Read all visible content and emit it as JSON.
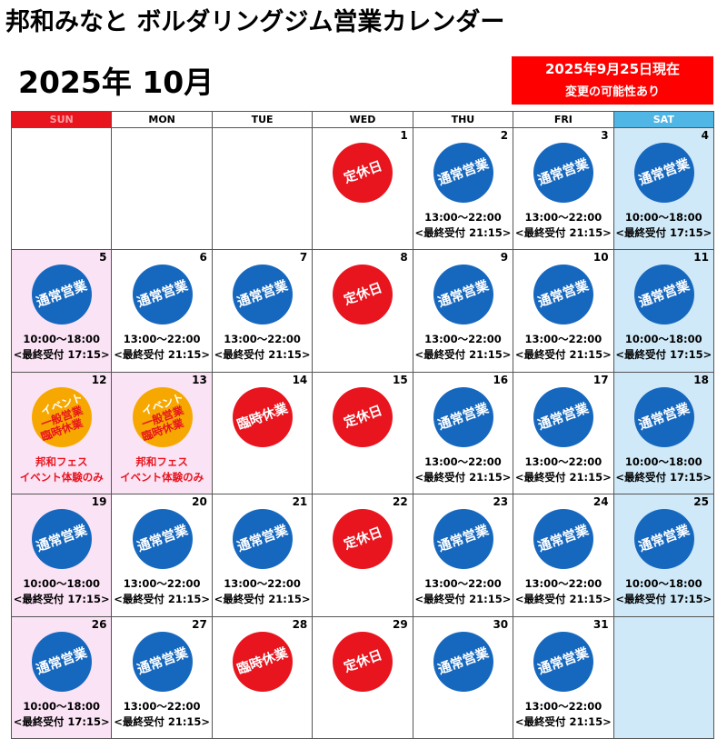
{
  "header": {
    "title": "邦和みなと ボルダリングジム営業カレンダー",
    "month": "2025年 10月",
    "notice": [
      "2025年9月25日現在",
      "変更の可能性あり"
    ]
  },
  "calendar": {
    "headers": [
      {
        "text": "SUN",
        "bg": "#e8141e",
        "color": "#ff9fa4"
      },
      {
        "text": "MON",
        "bg": "#ffffff",
        "color": "#000000"
      },
      {
        "text": "TUE",
        "bg": "#ffffff",
        "color": "#000000"
      },
      {
        "text": "WED",
        "bg": "#ffffff",
        "color": "#000000"
      },
      {
        "text": "THU",
        "bg": "#ffffff",
        "color": "#000000"
      },
      {
        "text": "FRI",
        "bg": "#ffffff",
        "color": "#000000"
      },
      {
        "text": "SAT",
        "bg": "#4fb6e6",
        "color": "#ffffff"
      }
    ],
    "weeks": [
      [
        {
          "bg": "#ffffff"
        },
        {
          "bg": "#ffffff"
        },
        {
          "bg": "#ffffff"
        },
        {
          "bg": "#ffffff",
          "day": 1,
          "badge": [
            "定休日"
          ],
          "badge_color": "#e8141e",
          "badge_text_colors": [
            "#ffffff"
          ]
        },
        {
          "bg": "#ffffff",
          "day": 2,
          "badge": [
            "通常営業"
          ],
          "badge_color": "#1668bf",
          "badge_text_colors": [
            "#ffffff"
          ],
          "notes": [
            "13:00～22:00",
            "<最終受付 21:15>"
          ],
          "note_color": "#000000"
        },
        {
          "bg": "#ffffff",
          "day": 3,
          "badge": [
            "通常営業"
          ],
          "badge_color": "#1668bf",
          "badge_text_colors": [
            "#ffffff"
          ],
          "notes": [
            "13:00～22:00",
            "<最終受付 21:15>"
          ],
          "note_color": "#000000"
        },
        {
          "bg": "#cfe9f8",
          "day": 4,
          "badge": [
            "通常営業"
          ],
          "badge_color": "#1668bf",
          "badge_text_colors": [
            "#ffffff"
          ],
          "notes": [
            "10:00～18:00",
            "<最終受付 17:15>"
          ],
          "note_color": "#000000"
        }
      ],
      [
        {
          "bg": "#fbe3f6",
          "day": 5,
          "badge": [
            "通常営業"
          ],
          "badge_color": "#1668bf",
          "badge_text_colors": [
            "#ffffff"
          ],
          "notes": [
            "10:00～18:00",
            "<最終受付 17:15>"
          ],
          "note_color": "#000000"
        },
        {
          "bg": "#ffffff",
          "day": 6,
          "badge": [
            "通常営業"
          ],
          "badge_color": "#1668bf",
          "badge_text_colors": [
            "#ffffff"
          ],
          "notes": [
            "13:00～22:00",
            "<最終受付 21:15>"
          ],
          "note_color": "#000000"
        },
        {
          "bg": "#ffffff",
          "day": 7,
          "badge": [
            "通常営業"
          ],
          "badge_color": "#1668bf",
          "badge_text_colors": [
            "#ffffff"
          ],
          "notes": [
            "13:00～22:00",
            "<最終受付 21:15>"
          ],
          "note_color": "#000000"
        },
        {
          "bg": "#ffffff",
          "day": 8,
          "badge": [
            "定休日"
          ],
          "badge_color": "#e8141e",
          "badge_text_colors": [
            "#ffffff"
          ]
        },
        {
          "bg": "#ffffff",
          "day": 9,
          "badge": [
            "通常営業"
          ],
          "badge_color": "#1668bf",
          "badge_text_colors": [
            "#ffffff"
          ],
          "notes": [
            "13:00～22:00",
            "<最終受付 21:15>"
          ],
          "note_color": "#000000"
        },
        {
          "bg": "#ffffff",
          "day": 10,
          "badge": [
            "通常営業"
          ],
          "badge_color": "#1668bf",
          "badge_text_colors": [
            "#ffffff"
          ],
          "notes": [
            "13:00～22:00",
            "<最終受付 21:15>"
          ],
          "note_color": "#000000"
        },
        {
          "bg": "#cfe9f8",
          "day": 11,
          "badge": [
            "通常営業"
          ],
          "badge_color": "#1668bf",
          "badge_text_colors": [
            "#ffffff"
          ],
          "notes": [
            "10:00～18:00",
            "<最終受付 17:15>"
          ],
          "note_color": "#000000"
        }
      ],
      [
        {
          "bg": "#fbe3f6",
          "day": 12,
          "badge": [
            "イベント",
            "一般営業",
            "臨時休業"
          ],
          "badge_color": "#f7a800",
          "badge_text_colors": [
            "#ffffff",
            "#e8141e",
            "#e8141e"
          ],
          "notes": [
            "邦和フェス",
            "イベント体験のみ"
          ],
          "note_color": "#e8141e"
        },
        {
          "bg": "#fbe3f6",
          "day": 13,
          "badge": [
            "イベント",
            "一般営業",
            "臨時休業"
          ],
          "badge_color": "#f7a800",
          "badge_text_colors": [
            "#ffffff",
            "#e8141e",
            "#e8141e"
          ],
          "notes": [
            "邦和フェス",
            "イベント体験のみ"
          ],
          "note_color": "#e8141e"
        },
        {
          "bg": "#ffffff",
          "day": 14,
          "badge": [
            "臨時休業"
          ],
          "badge_color": "#e8141e",
          "badge_text_colors": [
            "#ffffff"
          ]
        },
        {
          "bg": "#ffffff",
          "day": 15,
          "badge": [
            "定休日"
          ],
          "badge_color": "#e8141e",
          "badge_text_colors": [
            "#ffffff"
          ]
        },
        {
          "bg": "#ffffff",
          "day": 16,
          "badge": [
            "通常営業"
          ],
          "badge_color": "#1668bf",
          "badge_text_colors": [
            "#ffffff"
          ],
          "notes": [
            "13:00～22:00",
            "<最終受付 21:15>"
          ],
          "note_color": "#000000"
        },
        {
          "bg": "#ffffff",
          "day": 17,
          "badge": [
            "通常営業"
          ],
          "badge_color": "#1668bf",
          "badge_text_colors": [
            "#ffffff"
          ],
          "notes": [
            "13:00～22:00",
            "<最終受付 21:15>"
          ],
          "note_color": "#000000"
        },
        {
          "bg": "#cfe9f8",
          "day": 18,
          "badge": [
            "通常営業"
          ],
          "badge_color": "#1668bf",
          "badge_text_colors": [
            "#ffffff"
          ],
          "notes": [
            "10:00～18:00",
            "<最終受付 17:15>"
          ],
          "note_color": "#000000"
        }
      ],
      [
        {
          "bg": "#fbe3f6",
          "day": 19,
          "badge": [
            "通常営業"
          ],
          "badge_color": "#1668bf",
          "badge_text_colors": [
            "#ffffff"
          ],
          "notes": [
            "10:00～18:00",
            "<最終受付 17:15>"
          ],
          "note_color": "#000000"
        },
        {
          "bg": "#ffffff",
          "day": 20,
          "badge": [
            "通常営業"
          ],
          "badge_color": "#1668bf",
          "badge_text_colors": [
            "#ffffff"
          ],
          "notes": [
            "13:00～22:00",
            "<最終受付 21:15>"
          ],
          "note_color": "#000000"
        },
        {
          "bg": "#ffffff",
          "day": 21,
          "badge": [
            "通常営業"
          ],
          "badge_color": "#1668bf",
          "badge_text_colors": [
            "#ffffff"
          ],
          "notes": [
            "13:00～22:00",
            "<最終受付 21:15>"
          ],
          "note_color": "#000000"
        },
        {
          "bg": "#ffffff",
          "day": 22,
          "badge": [
            "定休日"
          ],
          "badge_color": "#e8141e",
          "badge_text_colors": [
            "#ffffff"
          ]
        },
        {
          "bg": "#ffffff",
          "day": 23,
          "badge": [
            "通常営業"
          ],
          "badge_color": "#1668bf",
          "badge_text_colors": [
            "#ffffff"
          ],
          "notes": [
            "13:00～22:00",
            "<最終受付 21:15>"
          ],
          "note_color": "#000000"
        },
        {
          "bg": "#ffffff",
          "day": 24,
          "badge": [
            "通常営業"
          ],
          "badge_color": "#1668bf",
          "badge_text_colors": [
            "#ffffff"
          ],
          "notes": [
            "13:00～22:00",
            "<最終受付 21:15>"
          ],
          "note_color": "#000000"
        },
        {
          "bg": "#cfe9f8",
          "day": 25,
          "badge": [
            "通常営業"
          ],
          "badge_color": "#1668bf",
          "badge_text_colors": [
            "#ffffff"
          ],
          "notes": [
            "10:00～18:00",
            "<最終受付 17:15>"
          ],
          "note_color": "#000000"
        }
      ],
      [
        {
          "bg": "#fbe3f6",
          "day": 26,
          "badge": [
            "通常営業"
          ],
          "badge_color": "#1668bf",
          "badge_text_colors": [
            "#ffffff"
          ],
          "notes": [
            "10:00～18:00",
            "<最終受付 17:15>"
          ],
          "note_color": "#000000"
        },
        {
          "bg": "#ffffff",
          "day": 27,
          "badge": [
            "通常営業"
          ],
          "badge_color": "#1668bf",
          "badge_text_colors": [
            "#ffffff"
          ],
          "notes": [
            "13:00～22:00",
            "<最終受付 21:15>"
          ],
          "note_color": "#000000"
        },
        {
          "bg": "#ffffff",
          "day": 28,
          "badge": [
            "臨時休業"
          ],
          "badge_color": "#e8141e",
          "badge_text_colors": [
            "#ffffff"
          ]
        },
        {
          "bg": "#ffffff",
          "day": 29,
          "badge": [
            "定休日"
          ],
          "badge_color": "#e8141e",
          "badge_text_colors": [
            "#ffffff"
          ]
        },
        {
          "bg": "#ffffff",
          "day": 30,
          "badge": [
            "通常営業"
          ],
          "badge_color": "#1668bf",
          "badge_text_colors": [
            "#ffffff"
          ]
        },
        {
          "bg": "#ffffff",
          "day": 31,
          "badge": [
            "通常営業"
          ],
          "badge_color": "#1668bf",
          "badge_text_colors": [
            "#ffffff"
          ],
          "notes": [
            "13:00～22:00",
            "<最終受付 21:15>"
          ],
          "note_color": "#000000"
        },
        {
          "bg": "#cfe9f8"
        }
      ]
    ]
  }
}
